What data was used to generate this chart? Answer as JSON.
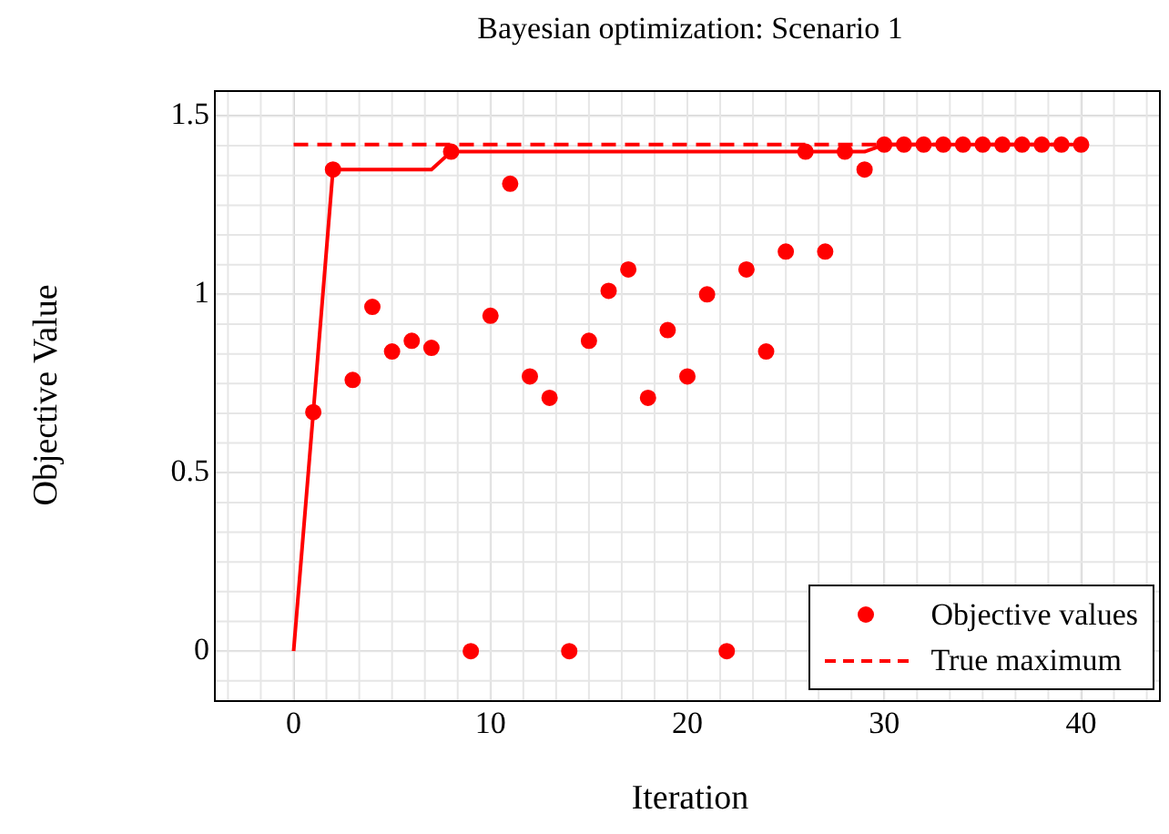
{
  "chart_data": {
    "type": "scatter",
    "title": "Bayesian optimization: Scenario 1",
    "xlabel": "Iteration",
    "ylabel": "Objective Value",
    "xlim": [
      -4,
      44
    ],
    "xticks": [
      0,
      10,
      20,
      30,
      40
    ],
    "ylim": [
      -0.14,
      1.57
    ],
    "yticks": [
      0,
      {
        "value": 0.5,
        "label": "0.5"
      },
      1,
      {
        "value": 1.5,
        "label": "1.5"
      }
    ],
    "grid": true,
    "legend": "bottom right",
    "series": [
      {
        "name": "Objective values",
        "color": "#ff0000",
        "marker": "circle",
        "x": [
          1,
          2,
          3,
          4,
          5,
          6,
          7,
          8,
          9,
          10,
          11,
          12,
          13,
          14,
          15,
          16,
          17,
          18,
          19,
          20,
          21,
          22,
          23,
          24,
          25,
          26,
          27,
          28,
          29,
          30,
          31,
          32,
          33,
          34,
          35,
          36,
          37,
          38,
          39,
          40
        ],
        "values": [
          0.67,
          1.35,
          0.76,
          0.965,
          0.84,
          0.87,
          0.85,
          1.4,
          0,
          0.94,
          1.31,
          0.77,
          0.71,
          0,
          0.87,
          1.01,
          1.07,
          0.71,
          0.9,
          0.77,
          1.0,
          0,
          1.07,
          0.84,
          1.12,
          1.4,
          1.12,
          1.4,
          1.35,
          1.42,
          1.42,
          1.42,
          1.42,
          1.42,
          1.42,
          1.42,
          1.42,
          1.42,
          1.42,
          1.42
        ]
      },
      {
        "type": "line",
        "color": "#ff0000",
        "marker": "none",
        "line_style": "solid",
        "x": [
          0,
          1,
          2,
          3,
          4,
          5,
          6,
          7,
          8,
          9,
          10,
          11,
          12,
          13,
          14,
          15,
          16,
          17,
          18,
          19,
          20,
          21,
          22,
          23,
          24,
          25,
          26,
          27,
          28,
          29,
          30,
          31,
          32,
          33,
          34,
          35,
          36,
          37,
          38,
          39,
          40
        ],
        "values": [
          0,
          0.67,
          1.35,
          1.35,
          1.35,
          1.35,
          1.35,
          1.35,
          1.4,
          1.4,
          1.4,
          1.4,
          1.4,
          1.4,
          1.4,
          1.4,
          1.4,
          1.4,
          1.4,
          1.4,
          1.4,
          1.4,
          1.4,
          1.4,
          1.4,
          1.4,
          1.4,
          1.4,
          1.4,
          1.4,
          1.42,
          1.42,
          1.42,
          1.42,
          1.42,
          1.42,
          1.42,
          1.42,
          1.42,
          1.42,
          1.42
        ]
      },
      {
        "type": "line",
        "name": "True maximum",
        "color": "#ff0000",
        "marker": "none",
        "line_style": "dashed",
        "x": [
          0,
          40
        ],
        "values": [
          1.42,
          1.42
        ]
      }
    ]
  }
}
